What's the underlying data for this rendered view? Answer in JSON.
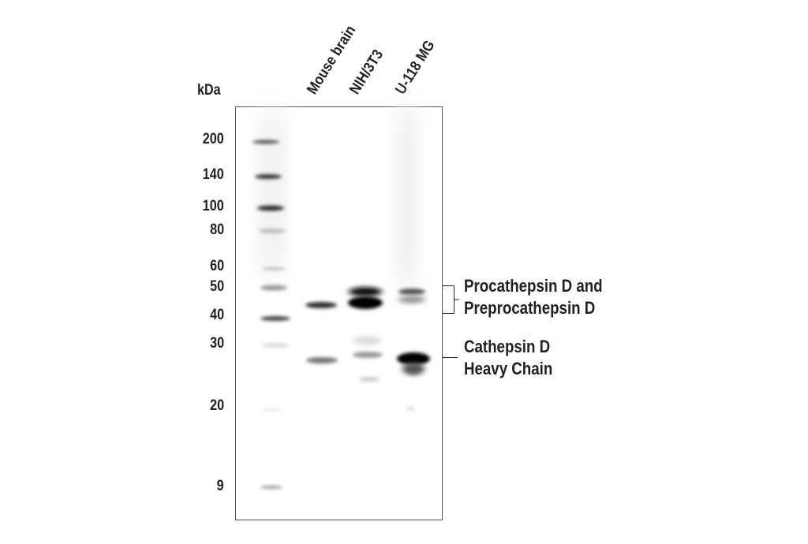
{
  "unit_label": "kDa",
  "markers": [
    "200",
    "140",
    "100",
    "80",
    "60",
    "50",
    "40",
    "30",
    "20",
    "9"
  ],
  "lanes": [
    "Mouse brain",
    "NIH/3T3",
    "U-118 MG"
  ],
  "annotations": {
    "pro_line1": "Procathepsin D and",
    "pro_line2": "Preprocathepsin D",
    "heavy_line1": "Cathepsin D",
    "heavy_line2": "Heavy Chain"
  },
  "colors": {
    "band": "#000000",
    "text": "#231f20",
    "frame": "#555555"
  }
}
